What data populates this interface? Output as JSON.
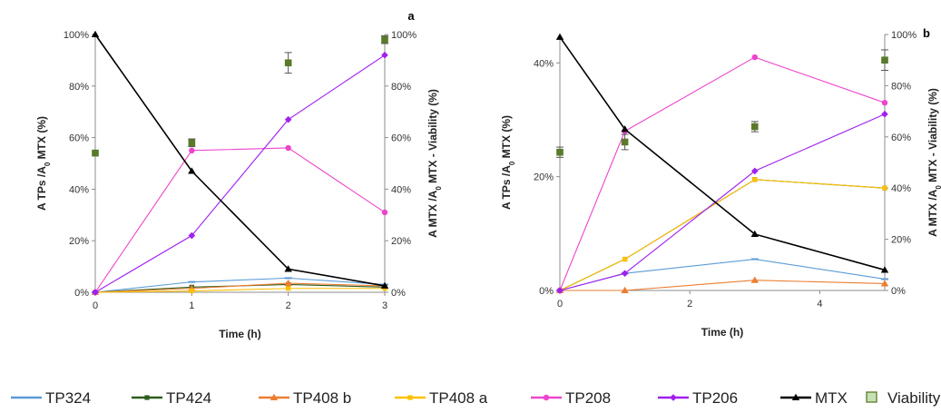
{
  "legend": [
    {
      "name": "TP324",
      "color": "#5b9bd5",
      "marker": "dash"
    },
    {
      "name": "TP424",
      "color": "#2e5e1e",
      "marker": "square"
    },
    {
      "name": "TP408 b",
      "color": "#ed7d31",
      "marker": "triangle"
    },
    {
      "name": "TP408 a",
      "color": "#ffc000",
      "marker": "square"
    },
    {
      "name": "TP208",
      "color": "#ee44cc",
      "marker": "circle"
    },
    {
      "name": "TP206",
      "color": "#a020f0",
      "marker": "diamond"
    },
    {
      "name": "MTX",
      "color": "#000000",
      "marker": "triangle"
    },
    {
      "name": "Viability",
      "color": "#5a7a2a",
      "marker": "box"
    }
  ],
  "chart_data": [
    {
      "type": "line",
      "panel": "a",
      "xlabel": "Time (h)",
      "ylabel_left_parts": [
        "A TPs /A",
        "0",
        " MTX (%)"
      ],
      "ylabel_right_parts": [
        "A MTX /A",
        "0",
        " MTX - Viability (%)"
      ],
      "xlim": [
        0,
        3
      ],
      "ylim_left": [
        0,
        100
      ],
      "ylim_right": [
        0,
        100
      ],
      "x_ticks": [
        0,
        1,
        2,
        3
      ],
      "x_tick_labels": [
        "0",
        "1",
        "2",
        "3"
      ],
      "y_ticks_left": [
        0,
        20,
        40,
        60,
        80,
        100
      ],
      "y_tick_labels_left": [
        "0%",
        "20%",
        "40%",
        "60%",
        "80%",
        "100%"
      ],
      "y_ticks_right": [
        0,
        20,
        40,
        60,
        80,
        100
      ],
      "y_tick_labels_right": [
        "0%",
        "20%",
        "40%",
        "60%",
        "80%",
        "100%"
      ],
      "series": [
        {
          "name": "TP324",
          "axis": "left",
          "x": [
            0,
            1,
            2,
            3
          ],
          "y": [
            0,
            4,
            5.5,
            3
          ]
        },
        {
          "name": "TP424",
          "axis": "left",
          "x": [
            0,
            1,
            2,
            3
          ],
          "y": [
            0,
            2,
            3,
            2
          ]
        },
        {
          "name": "TP408 b",
          "axis": "left",
          "x": [
            0,
            1,
            2,
            3
          ],
          "y": [
            0,
            1.5,
            3.5,
            2.5
          ]
        },
        {
          "name": "TP408 a",
          "axis": "left",
          "x": [
            0,
            1,
            2,
            3
          ],
          "y": [
            0,
            0.5,
            1.5,
            1.5
          ]
        },
        {
          "name": "TP208",
          "axis": "left",
          "x": [
            0,
            1,
            2,
            3
          ],
          "y": [
            0,
            55,
            56,
            31
          ]
        },
        {
          "name": "TP206",
          "axis": "left",
          "x": [
            0,
            1,
            2,
            3
          ],
          "y": [
            0,
            22,
            67,
            92
          ]
        },
        {
          "name": "MTX",
          "axis": "right",
          "x": [
            0,
            1,
            2,
            3
          ],
          "y": [
            100,
            47,
            9,
            2.5
          ]
        },
        {
          "name": "Viability",
          "axis": "right",
          "x": [
            0,
            1,
            2,
            3
          ],
          "y": [
            54,
            58,
            89,
            98
          ],
          "err": [
            0,
            1.5,
            4,
            1.5
          ]
        }
      ]
    },
    {
      "type": "line",
      "panel": "b",
      "xlabel": "Time (h)",
      "ylabel_left_parts": [
        "A TPs /A",
        "0",
        " MTX (%)"
      ],
      "ylabel_right_parts": [
        "A MTX /A",
        "0",
        " MTX - Viability (%)"
      ],
      "xlim": [
        0,
        5
      ],
      "ylim_left": [
        0,
        45
      ],
      "ylim_right": [
        0,
        100
      ],
      "x_ticks": [
        0,
        2,
        4
      ],
      "x_tick_labels": [
        "0",
        "2",
        "4"
      ],
      "y_ticks_left": [
        0,
        20,
        40
      ],
      "y_tick_labels_left": [
        "0%",
        "20%",
        "40%"
      ],
      "y_ticks_right": [
        0,
        20,
        40,
        60,
        80,
        100
      ],
      "y_tick_labels_right": [
        "0%",
        "20%",
        "40%",
        "60%",
        "80%",
        "100%"
      ],
      "series": [
        {
          "name": "TP324",
          "axis": "left",
          "x": [
            0,
            1,
            3,
            5
          ],
          "y": [
            0,
            3,
            5.5,
            2
          ]
        },
        {
          "name": "TP424",
          "axis": "left",
          "x": [
            0,
            1,
            3,
            5
          ],
          "y": [
            0,
            5.5,
            19.5,
            18
          ]
        },
        {
          "name": "TP408 b",
          "axis": "left",
          "x": [
            0,
            1,
            3,
            5
          ],
          "y": [
            0,
            0,
            1.8,
            1.2
          ]
        },
        {
          "name": "TP408 a",
          "axis": "left",
          "x": [
            0,
            1,
            3,
            5
          ],
          "y": [
            0,
            5.5,
            19.5,
            18
          ]
        },
        {
          "name": "TP208",
          "axis": "left",
          "x": [
            0,
            1,
            3,
            5
          ],
          "y": [
            0,
            28,
            41,
            33
          ]
        },
        {
          "name": "TP206",
          "axis": "left",
          "x": [
            0,
            1,
            3,
            5
          ],
          "y": [
            0,
            3,
            21,
            31
          ]
        },
        {
          "name": "MTX",
          "axis": "right",
          "x": [
            0,
            1,
            3,
            5
          ],
          "y": [
            99,
            63,
            22,
            8
          ]
        },
        {
          "name": "Viability",
          "axis": "right",
          "x": [
            0,
            1,
            3,
            5
          ],
          "y": [
            54,
            58,
            64,
            90
          ],
          "err": [
            2,
            3,
            2,
            4
          ]
        }
      ]
    }
  ]
}
